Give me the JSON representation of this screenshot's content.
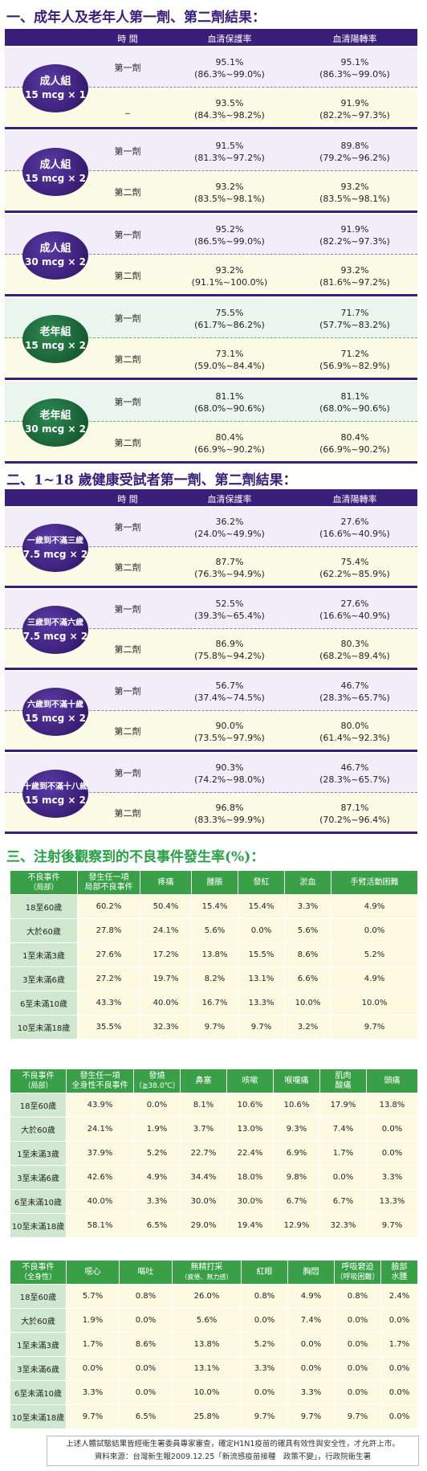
{
  "section1": {
    "title": "一、成年人及老年人第一劑、第二劑結果：",
    "headers": [
      "時 間",
      "血清保護率",
      "血清陽轉率"
    ],
    "groups": [
      {
        "l1": "成人組",
        "l2": "15 mcg × 1",
        "r1": {
          "dose": "第一劑",
          "a": "95.1%",
          "ar": "(86.3%~99.0%)",
          "b": "95.1%",
          "br": "(86.3%~99.0%)"
        },
        "r2": {
          "dose": "_",
          "a": "93.5%",
          "ar": "(84.3%~98.2%)",
          "b": "91.9%",
          "br": "(82.2%~97.3%)"
        }
      },
      {
        "l1": "成人組",
        "l2": "15 mcg × 2",
        "r1": {
          "dose": "第一劑",
          "a": "91.5%",
          "ar": "(81.3%~97.2%)",
          "b": "89.8%",
          "br": "(79.2%~96.2%)"
        },
        "r2": {
          "dose": "第二劑",
          "a": "93.2%",
          "ar": "(83.5%~98.1%)",
          "b": "93.2%",
          "br": "(83.5%~98.1%)"
        }
      },
      {
        "l1": "成人組",
        "l2": "30 mcg × 2",
        "r1": {
          "dose": "第一劑",
          "a": "95.2%",
          "ar": "(86.5%~99.0%)",
          "b": "91.9%",
          "br": "(82.2%~97.3%)"
        },
        "r2": {
          "dose": "第二劑",
          "a": "93.2%",
          "ar": "(91.1%~100.0%)",
          "b": "93.2%",
          "br": "(81.6%~97.2%)"
        }
      },
      {
        "l1": "老年組",
        "l2": "15 mcg × 2",
        "r1": {
          "dose": "第一劑",
          "a": "75.5%",
          "ar": "(61.7%~86.2%)",
          "b": "71.7%",
          "br": "(57.7%~83.2%)"
        },
        "r2": {
          "dose": "第二劑",
          "a": "73.1%",
          "ar": "(59.0%~84.4%)",
          "b": "71.2%",
          "br": "(56.9%~82.9%)"
        }
      },
      {
        "l1": "老年組",
        "l2": "30 mcg × 2",
        "r1": {
          "dose": "第一劑",
          "a": "81.1%",
          "ar": "(68.0%~90.6%)",
          "b": "81.1%",
          "br": "(68.0%~90.6%)"
        },
        "r2": {
          "dose": "第二劑",
          "a": "80.4%",
          "ar": "(66.9%~90.2%)",
          "b": "80.4%",
          "br": "(66.9%~90.2%)"
        }
      }
    ]
  },
  "section2": {
    "title": "二、1~18 歲健康受試者第一劑、第二劑結果：",
    "headers": [
      "時 間",
      "血清保護率",
      "血清陽轉率"
    ],
    "groups": [
      {
        "l1": "一歲到不滿三歲",
        "l2": "7.5 mcg × 2",
        "r1": {
          "dose": "第一劑",
          "a": "36.2%",
          "ar": "(24.0%~49.9%)",
          "b": "27.6%",
          "br": "(16.6%~40.9%)"
        },
        "r2": {
          "dose": "第二劑",
          "a": "87.7%",
          "ar": "(76.3%~94.9%)",
          "b": "75.4%",
          "br": "(62.2%~85.9%)"
        }
      },
      {
        "l1": "三歲到不滿六歲",
        "l2": "7.5 mcg × 2",
        "r1": {
          "dose": "第一劑",
          "a": "52.5%",
          "ar": "(39.3%~65.4%)",
          "b": "27.6%",
          "br": "(16.6%~40.9%)"
        },
        "r2": {
          "dose": "第二劑",
          "a": "86.9%",
          "ar": "(75.8%~94.2%)",
          "b": "80.3%",
          "br": "(68.2%~89.4%)"
        }
      },
      {
        "l1": "六歲到不滿十歲",
        "l2": "15 mcg × 2",
        "r1": {
          "dose": "第一劑",
          "a": "56.7%",
          "ar": "(37.4%~74.5%)",
          "b": "46.7%",
          "br": "(28.3%~65.7%)"
        },
        "r2": {
          "dose": "第二劑",
          "a": "90.0%",
          "ar": "(73.5%~97.9%)",
          "b": "80.0%",
          "br": "(61.4%~92.3%)"
        }
      },
      {
        "l1": "十歲到不滿十八歲",
        "l2": "15 mcg × 2",
        "r1": {
          "dose": "第一劑",
          "a": "90.3%",
          "ar": "(74.2%~98.0%)",
          "b": "46.7%",
          "br": "(28.3%~65.7%)"
        },
        "r2": {
          "dose": "第二劑",
          "a": "96.8%",
          "ar": "(83.3%~99.9%)",
          "b": "87.1%",
          "br": "(70.2%~96.4%)"
        }
      }
    ]
  },
  "section3": {
    "title": "三、注射後觀察到的不良事件發生率(%)：",
    "rows": [
      "18至60歲",
      "大於60歲",
      "1至未滿3歲",
      "3至未滿6歲",
      "6至未滿10歲",
      "10至未滿18歲"
    ],
    "t1": {
      "h": [
        "不良事件\n（局部）",
        "發生任一項\n局部不良事件",
        "疼痛",
        "腫脹",
        "發紅",
        "淤血",
        "手臂活動困難"
      ],
      "v": [
        [
          "60.2%",
          "50.4%",
          "15.4%",
          "15.4%",
          "3.3%",
          "4.9%"
        ],
        [
          "27.8%",
          "24.1%",
          "5.6%",
          "0.0%",
          "5.6%",
          "0.0%"
        ],
        [
          "27.6%",
          "17.2%",
          "13.8%",
          "15.5%",
          "8.6%",
          "5.2%"
        ],
        [
          "27.2%",
          "19.7%",
          "8.2%",
          "13.1%",
          "6.6%",
          "4.9%"
        ],
        [
          "43.3%",
          "40.0%",
          "16.7%",
          "13.3%",
          "10.0%",
          "10.0%"
        ],
        [
          "35.5%",
          "32.3%",
          "9.7%",
          "9.7%",
          "3.2%",
          "9.7%"
        ]
      ]
    },
    "t2": {
      "h": [
        "不良事件\n（局部）",
        "發生任一項\n全身性不良事件",
        "發燒\n（≧38.0℃）",
        "鼻塞",
        "咳嗽",
        "喉嚨痛",
        "肌肉\n酸痛",
        "頭痛"
      ],
      "v": [
        [
          "43.9%",
          "0.0%",
          "8.1%",
          "10.6%",
          "10.6%",
          "17.9%",
          "13.8%"
        ],
        [
          "24.1%",
          "1.9%",
          "3.7%",
          "13.0%",
          "9.3%",
          "7.4%",
          "0.0%"
        ],
        [
          "37.9%",
          "5.2%",
          "22.7%",
          "22.4%",
          "6.9%",
          "1.7%",
          "0.0%"
        ],
        [
          "42.6%",
          "4.9%",
          "34.4%",
          "18.0%",
          "9.8%",
          "0.0%",
          "3.3%"
        ],
        [
          "40.0%",
          "3.3%",
          "30.0%",
          "30.0%",
          "6.7%",
          "6.7%",
          "13.3%"
        ],
        [
          "58.1%",
          "6.5%",
          "29.0%",
          "19.4%",
          "12.9%",
          "32.3%",
          "9.7%"
        ]
      ]
    },
    "t3": {
      "h": [
        "不良事件\n（全身性）",
        "噁心",
        "嘔吐",
        "無精打采",
        "紅眼",
        "胸悶",
        "呼吸窘迫\n（呼吸困難）",
        "臉部\n水腫"
      ],
      "h_sub": "（疲倦、無力感）",
      "v": [
        [
          "5.7%",
          "0.8%",
          "26.0%",
          "0.8%",
          "4.9%",
          "0.8%",
          "2.4%"
        ],
        [
          "1.9%",
          "0.0%",
          "5.6%",
          "0.0%",
          "7.4%",
          "0.0%",
          "0.0%"
        ],
        [
          "1.7%",
          "8.6%",
          "13.8%",
          "5.2%",
          "0.0%",
          "0.0%",
          "1.7%"
        ],
        [
          "0.0%",
          "0.0%",
          "13.1%",
          "3.3%",
          "0.0%",
          "0.0%",
          "0.0%"
        ],
        [
          "3.3%",
          "0.0%",
          "10.0%",
          "0.0%",
          "3.3%",
          "0.0%",
          "0.0%"
        ],
        [
          "9.7%",
          "6.5%",
          "25.8%",
          "9.7%",
          "9.7%",
          "9.7%",
          "0.0%"
        ]
      ]
    }
  },
  "note": {
    "line1": "上述人體試驗結果皆經衛生署委員專家審查，確定H1N1疫苗的確具有效性與安全性，才允許上市。",
    "line2": "資料來源：台灣新生報2009.12.25「新流感疫苗接種　政策不變」，行政院衛生署"
  },
  "colors": {
    "purple": "#3a1e7a",
    "green": "#3aa048"
  }
}
